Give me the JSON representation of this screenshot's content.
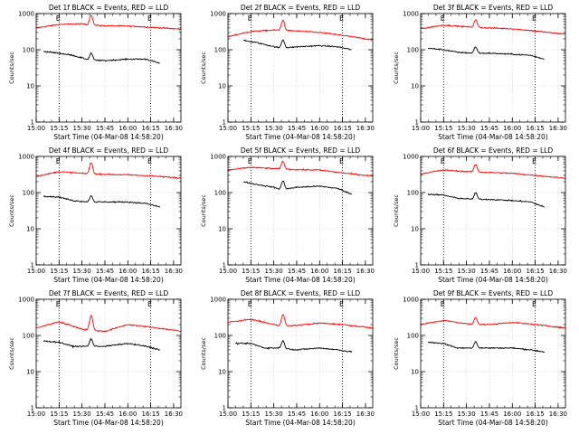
{
  "chart_data": [
    {
      "type": "line",
      "title": "Det 1f BLACK = Events, RED = LLD",
      "xlabel": "Start Time (04-Mar-08 14:58:20)",
      "ylabel": "Counts/sec",
      "marker": "E",
      "series": [
        {
          "color": "#ff0000",
          "base": [
            [
              15.0,
              400
            ],
            [
              15.25,
              500
            ],
            [
              15.5,
              520
            ],
            [
              15.58,
              480
            ],
            [
              15.75,
              460
            ],
            [
              16.0,
              450
            ],
            [
              16.25,
              420
            ],
            [
              16.5,
              380
            ],
            [
              16.58,
              370
            ]
          ],
          "peak": {
            "x": 15.6,
            "factor": 1.9
          }
        },
        {
          "color": "#000000",
          "base": [
            [
              15.08,
              90
            ],
            [
              15.25,
              80
            ],
            [
              15.4,
              70
            ],
            [
              15.58,
              52
            ],
            [
              15.75,
              50
            ],
            [
              16.0,
              55
            ],
            [
              16.2,
              55
            ],
            [
              16.35,
              42
            ]
          ],
          "peak": {
            "x": 15.6,
            "factor": 1.55
          }
        }
      ]
    },
    {
      "type": "line",
      "title": "Det 2f BLACK = Events, RED = LLD",
      "xlabel": "Start Time (04-Mar-08 14:58:20)",
      "ylabel": "Counts/sec",
      "marker": "E",
      "series": [
        {
          "color": "#ff0000",
          "base": [
            [
              15.0,
              230
            ],
            [
              15.25,
              320
            ],
            [
              15.5,
              350
            ],
            [
              15.75,
              330
            ],
            [
              16.0,
              300
            ],
            [
              16.25,
              250
            ],
            [
              16.5,
              200
            ],
            [
              16.58,
              190
            ]
          ],
          "peak": {
            "x": 15.6,
            "factor": 1.9
          }
        },
        {
          "color": "#000000",
          "base": [
            [
              15.17,
              180
            ],
            [
              15.3,
              160
            ],
            [
              15.58,
              110
            ],
            [
              15.75,
              120
            ],
            [
              16.0,
              130
            ],
            [
              16.2,
              120
            ],
            [
              16.35,
              100
            ]
          ],
          "peak": {
            "x": 15.6,
            "factor": 1.7
          }
        }
      ]
    },
    {
      "type": "line",
      "title": "Det 3f BLACK = Events, RED = LLD",
      "xlabel": "Start Time (04-Mar-08 14:58:20)",
      "ylabel": "Counts/sec",
      "marker": "E",
      "series": [
        {
          "color": "#ff0000",
          "base": [
            [
              15.0,
              380
            ],
            [
              15.25,
              480
            ],
            [
              15.5,
              430
            ],
            [
              15.75,
              400
            ],
            [
              16.0,
              380
            ],
            [
              16.25,
              330
            ],
            [
              16.5,
              280
            ],
            [
              16.58,
              270
            ]
          ],
          "peak": {
            "x": 15.6,
            "factor": 1.6
          }
        },
        {
          "color": "#000000",
          "base": [
            [
              15.08,
              110
            ],
            [
              15.25,
              100
            ],
            [
              15.4,
              85
            ],
            [
              15.58,
              80
            ],
            [
              15.75,
              80
            ],
            [
              16.0,
              75
            ],
            [
              16.2,
              70
            ],
            [
              16.35,
              55
            ]
          ],
          "peak": {
            "x": 15.6,
            "factor": 1.5
          }
        }
      ]
    },
    {
      "type": "line",
      "title": "Det 4f BLACK = Events, RED = LLD",
      "xlabel": "Start Time (04-Mar-08 14:58:20)",
      "ylabel": "Counts/sec",
      "marker": "E",
      "series": [
        {
          "color": "#ff0000",
          "base": [
            [
              15.0,
              280
            ],
            [
              15.25,
              380
            ],
            [
              15.5,
              340
            ],
            [
              15.75,
              320
            ],
            [
              16.0,
              310
            ],
            [
              16.25,
              290
            ],
            [
              16.5,
              260
            ],
            [
              16.58,
              250
            ]
          ],
          "peak": {
            "x": 15.6,
            "factor": 2.0
          }
        },
        {
          "color": "#000000",
          "base": [
            [
              15.08,
              80
            ],
            [
              15.25,
              75
            ],
            [
              15.4,
              60
            ],
            [
              15.58,
              55
            ],
            [
              15.75,
              55
            ],
            [
              16.0,
              55
            ],
            [
              16.2,
              50
            ],
            [
              16.35,
              40
            ]
          ],
          "peak": {
            "x": 15.6,
            "factor": 1.5
          }
        }
      ]
    },
    {
      "type": "line",
      "title": "Det 5f BLACK = Events, RED = LLD",
      "xlabel": "Start Time (04-Mar-08 14:58:20)",
      "ylabel": "Counts/sec",
      "marker": "E",
      "series": [
        {
          "color": "#ff0000",
          "base": [
            [
              15.0,
              420
            ],
            [
              15.25,
              500
            ],
            [
              15.5,
              460
            ],
            [
              15.75,
              430
            ],
            [
              16.0,
              420
            ],
            [
              16.25,
              350
            ],
            [
              16.5,
              300
            ],
            [
              16.58,
              290
            ]
          ],
          "peak": {
            "x": 15.6,
            "factor": 1.6
          }
        },
        {
          "color": "#000000",
          "base": [
            [
              15.17,
              200
            ],
            [
              15.3,
              170
            ],
            [
              15.5,
              140
            ],
            [
              15.58,
              120
            ],
            [
              15.75,
              140
            ],
            [
              16.0,
              150
            ],
            [
              16.2,
              130
            ],
            [
              16.35,
              90
            ]
          ],
          "peak": {
            "x": 15.6,
            "factor": 1.7
          }
        }
      ]
    },
    {
      "type": "line",
      "title": "Det 6f BLACK = Events, RED = LLD",
      "xlabel": "Start Time (04-Mar-08 14:58:20)",
      "ylabel": "Counts/sec",
      "marker": "E",
      "series": [
        {
          "color": "#ff0000",
          "base": [
            [
              15.0,
              330
            ],
            [
              15.25,
              420
            ],
            [
              15.5,
              380
            ],
            [
              15.75,
              360
            ],
            [
              16.0,
              340
            ],
            [
              16.25,
              300
            ],
            [
              16.5,
              260
            ],
            [
              16.58,
              250
            ]
          ],
          "peak": {
            "x": 15.6,
            "factor": 1.6
          }
        },
        {
          "color": "#000000",
          "base": [
            [
              15.08,
              90
            ],
            [
              15.25,
              85
            ],
            [
              15.4,
              70
            ],
            [
              15.58,
              65
            ],
            [
              15.75,
              65
            ],
            [
              16.0,
              60
            ],
            [
              16.2,
              55
            ],
            [
              16.35,
              40
            ]
          ],
          "peak": {
            "x": 15.6,
            "factor": 1.5
          }
        }
      ]
    },
    {
      "type": "line",
      "title": "Det 7f BLACK = Events, RED = LLD",
      "xlabel": "Start Time (04-Mar-08 14:58:20)",
      "ylabel": "Counts/sec",
      "marker": "E",
      "series": [
        {
          "color": "#ff0000",
          "base": [
            [
              15.0,
              160
            ],
            [
              15.25,
              240
            ],
            [
              15.5,
              150
            ],
            [
              15.58,
              140
            ],
            [
              15.75,
              130
            ],
            [
              16.0,
              200
            ],
            [
              16.25,
              170
            ],
            [
              16.5,
              140
            ],
            [
              16.58,
              130
            ]
          ],
          "peak": {
            "x": 15.6,
            "factor": 2.5
          }
        },
        {
          "color": "#000000",
          "base": [
            [
              15.08,
              70
            ],
            [
              15.25,
              65
            ],
            [
              15.4,
              50
            ],
            [
              15.58,
              50
            ],
            [
              15.75,
              50
            ],
            [
              16.0,
              60
            ],
            [
              16.2,
              50
            ],
            [
              16.35,
              40
            ]
          ],
          "peak": {
            "x": 15.6,
            "factor": 1.6
          }
        }
      ]
    },
    {
      "type": "line",
      "title": "Det 8f BLACK = Events, RED = LLD",
      "xlabel": "Start Time (04-Mar-08 14:58:20)",
      "ylabel": "Counts/sec",
      "marker": "E",
      "series": [
        {
          "color": "#ff0000",
          "base": [
            [
              15.0,
              230
            ],
            [
              15.25,
              280
            ],
            [
              15.5,
              200
            ],
            [
              15.58,
              180
            ],
            [
              15.75,
              190
            ],
            [
              16.0,
              220
            ],
            [
              16.25,
              200
            ],
            [
              16.5,
              170
            ],
            [
              16.58,
              160
            ]
          ],
          "peak": {
            "x": 15.6,
            "factor": 2.1
          }
        },
        {
          "color": "#000000",
          "base": [
            [
              15.08,
              60
            ],
            [
              15.25,
              60
            ],
            [
              15.4,
              45
            ],
            [
              15.58,
              45
            ],
            [
              15.75,
              40
            ],
            [
              16.0,
              45
            ],
            [
              16.2,
              40
            ],
            [
              16.35,
              35
            ]
          ],
          "peak": {
            "x": 15.6,
            "factor": 1.6
          }
        }
      ]
    },
    {
      "type": "line",
      "title": "Det 9f BLACK = Events, RED = LLD",
      "xlabel": "Start Time (04-Mar-08 14:58:20)",
      "ylabel": "Counts/sec",
      "marker": "E",
      "series": [
        {
          "color": "#ff0000",
          "base": [
            [
              15.0,
              200
            ],
            [
              15.25,
              260
            ],
            [
              15.5,
              210
            ],
            [
              15.58,
              200
            ],
            [
              15.75,
              200
            ],
            [
              16.0,
              230
            ],
            [
              16.25,
              200
            ],
            [
              16.5,
              170
            ],
            [
              16.58,
              160
            ]
          ],
          "peak": {
            "x": 15.6,
            "factor": 1.6
          }
        },
        {
          "color": "#000000",
          "base": [
            [
              15.08,
              65
            ],
            [
              15.25,
              60
            ],
            [
              15.4,
              45
            ],
            [
              15.58,
              45
            ],
            [
              15.75,
              45
            ],
            [
              16.0,
              45
            ],
            [
              16.2,
              40
            ],
            [
              16.35,
              35
            ]
          ],
          "peak": {
            "x": 15.6,
            "factor": 1.5
          }
        }
      ]
    }
  ],
  "axes": {
    "xlim": [
      15.0,
      16.58
    ],
    "ylim": [
      1,
      1000
    ],
    "yscale": "log",
    "xticks": [
      15.0,
      15.25,
      15.5,
      15.75,
      16.0,
      16.25,
      16.5
    ],
    "xtick_labels": [
      "15:00",
      "15:15",
      "15:30",
      "15:45",
      "16:00",
      "16:15",
      "16:30"
    ],
    "yticks": [
      1,
      10,
      100,
      1000
    ],
    "ytick_labels": [
      "1",
      "10",
      "100",
      "1000"
    ],
    "vlines": [
      15.25,
      16.25
    ],
    "grid": "dotted"
  }
}
